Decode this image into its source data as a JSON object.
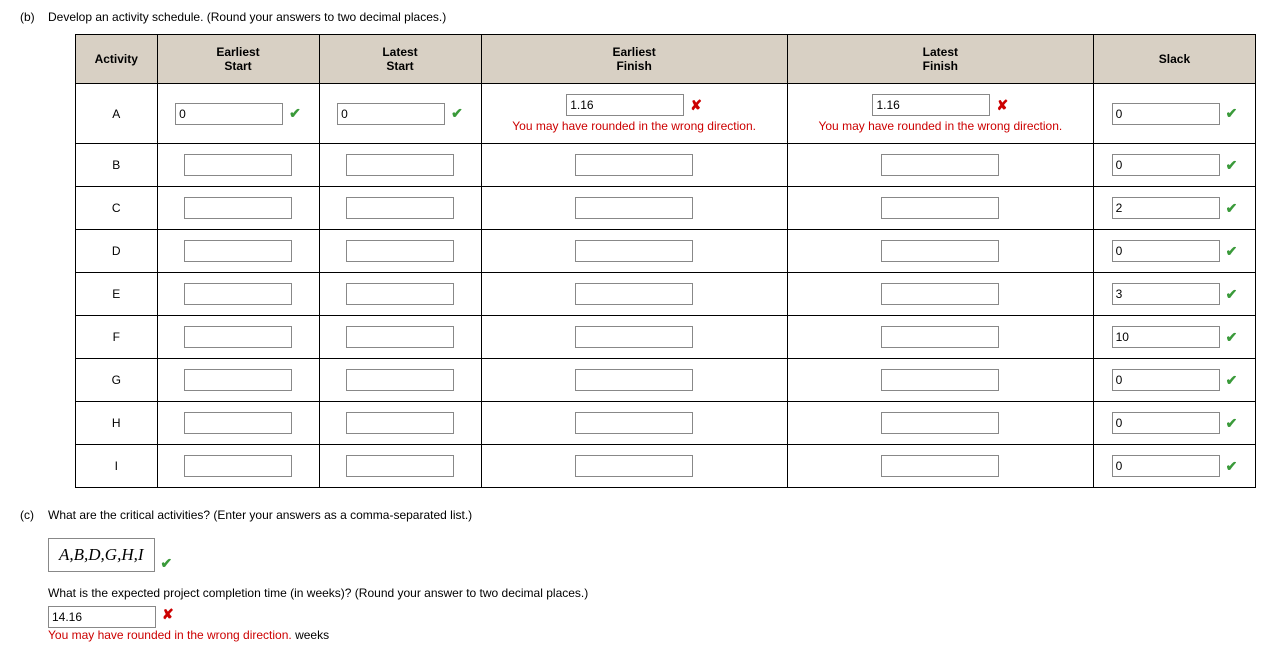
{
  "partB": {
    "label": "(b)",
    "prompt": "Develop an activity schedule. (Round your answers to two decimal places.)",
    "headers": {
      "activity": "Activity",
      "es": "Earliest\nStart",
      "ls": "Latest\nStart",
      "ef": "Earliest\nFinish",
      "lf": "Latest\nFinish",
      "slack": "Slack"
    },
    "rows": [
      {
        "activity": "A",
        "es": {
          "val": "0",
          "mark": "ok"
        },
        "ls": {
          "val": "0",
          "mark": "ok"
        },
        "ef": {
          "val": "1.16",
          "mark": "bad",
          "fb": "You may have rounded in the wrong direction."
        },
        "lf": {
          "val": "1.16",
          "mark": "bad",
          "fb": "You may have rounded in the wrong direction."
        },
        "slack": {
          "val": "0",
          "mark": "ok"
        }
      },
      {
        "activity": "B",
        "es": {
          "val": ""
        },
        "ls": {
          "val": ""
        },
        "ef": {
          "val": ""
        },
        "lf": {
          "val": ""
        },
        "slack": {
          "val": "0",
          "mark": "ok"
        }
      },
      {
        "activity": "C",
        "es": {
          "val": ""
        },
        "ls": {
          "val": ""
        },
        "ef": {
          "val": ""
        },
        "lf": {
          "val": ""
        },
        "slack": {
          "val": "2",
          "mark": "ok"
        }
      },
      {
        "activity": "D",
        "es": {
          "val": ""
        },
        "ls": {
          "val": ""
        },
        "ef": {
          "val": ""
        },
        "lf": {
          "val": ""
        },
        "slack": {
          "val": "0",
          "mark": "ok"
        }
      },
      {
        "activity": "E",
        "es": {
          "val": ""
        },
        "ls": {
          "val": ""
        },
        "ef": {
          "val": ""
        },
        "lf": {
          "val": ""
        },
        "slack": {
          "val": "3",
          "mark": "ok"
        }
      },
      {
        "activity": "F",
        "es": {
          "val": ""
        },
        "ls": {
          "val": ""
        },
        "ef": {
          "val": ""
        },
        "lf": {
          "val": ""
        },
        "slack": {
          "val": "10",
          "mark": "ok"
        }
      },
      {
        "activity": "G",
        "es": {
          "val": ""
        },
        "ls": {
          "val": ""
        },
        "ef": {
          "val": ""
        },
        "lf": {
          "val": ""
        },
        "slack": {
          "val": "0",
          "mark": "ok"
        }
      },
      {
        "activity": "H",
        "es": {
          "val": ""
        },
        "ls": {
          "val": ""
        },
        "ef": {
          "val": ""
        },
        "lf": {
          "val": ""
        },
        "slack": {
          "val": "0",
          "mark": "ok"
        }
      },
      {
        "activity": "I",
        "es": {
          "val": ""
        },
        "ls": {
          "val": ""
        },
        "ef": {
          "val": ""
        },
        "lf": {
          "val": ""
        },
        "slack": {
          "val": "0",
          "mark": "ok"
        }
      }
    ]
  },
  "partC": {
    "label": "(c)",
    "prompt1": "What are the critical activities? (Enter your answers as a comma-separated list.)",
    "critical": {
      "val": "A,B,D,G,H,I",
      "mark": "ok"
    },
    "prompt2": "What is the expected project completion time (in weeks)? (Round your answer to two decimal places.)",
    "time": {
      "val": "14.16",
      "mark": "bad",
      "fb": "You may have rounded in the wrong direction.",
      "unit": "weeks"
    }
  },
  "marks": {
    "ok": "✔",
    "bad": "✘"
  }
}
